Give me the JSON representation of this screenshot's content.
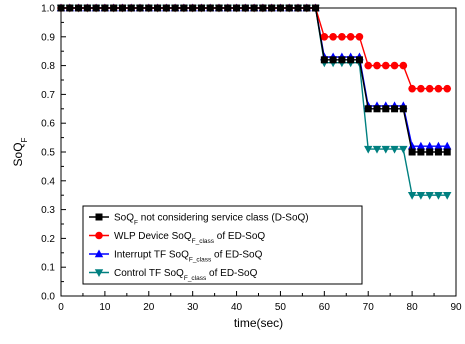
{
  "chart_data": {
    "type": "line",
    "xlabel": "time(sec)",
    "ylabel": {
      "main": "SoQ",
      "sub": "F"
    },
    "xlim": [
      0,
      90
    ],
    "ylim": [
      0.0,
      1.0
    ],
    "xticks": [
      0,
      10,
      20,
      30,
      40,
      50,
      60,
      70,
      80,
      90
    ],
    "yticks": [
      0.0,
      0.1,
      0.2,
      0.3,
      0.4,
      0.5,
      0.6,
      0.7,
      0.8,
      0.9,
      1.0
    ],
    "xtick_labels": [
      "0",
      "10",
      "20",
      "30",
      "40",
      "50",
      "60",
      "70",
      "80",
      "90"
    ],
    "ytick_labels": [
      "0.0",
      "0.1",
      "0.2",
      "0.3",
      "0.4",
      "0.5",
      "0.6",
      "0.7",
      "0.8",
      "0.9",
      "1.0"
    ],
    "grid": false,
    "legend_position": "bottom-left",
    "x": [
      0,
      2,
      4,
      6,
      8,
      10,
      12,
      14,
      16,
      18,
      20,
      22,
      24,
      26,
      28,
      30,
      32,
      34,
      36,
      38,
      40,
      42,
      44,
      46,
      48,
      50,
      52,
      54,
      56,
      58,
      60,
      62,
      64,
      66,
      68,
      70,
      72,
      74,
      76,
      78,
      80,
      82,
      84,
      86,
      88
    ],
    "series": [
      {
        "name": "SoQ not considering service class (D-SoQ)",
        "legend": {
          "pre": "SoQ",
          "sub": "F",
          "post": " not considering service class (D-SoQ)"
        },
        "color": "#000000",
        "marker": "square",
        "values": [
          1,
          1,
          1,
          1,
          1,
          1,
          1,
          1,
          1,
          1,
          1,
          1,
          1,
          1,
          1,
          1,
          1,
          1,
          1,
          1,
          1,
          1,
          1,
          1,
          1,
          1,
          1,
          1,
          1,
          1,
          0.82,
          0.82,
          0.82,
          0.82,
          0.82,
          0.65,
          0.65,
          0.65,
          0.65,
          0.65,
          0.5,
          0.5,
          0.5,
          0.5,
          0.5
        ]
      },
      {
        "name": "WLP Device SoQ of ED-SoQ",
        "legend": {
          "pre": "WLP Device SoQ",
          "sub": "F_class",
          "post": " of ED-SoQ"
        },
        "color": "#ff0000",
        "marker": "circle",
        "values": [
          1,
          1,
          1,
          1,
          1,
          1,
          1,
          1,
          1,
          1,
          1,
          1,
          1,
          1,
          1,
          1,
          1,
          1,
          1,
          1,
          1,
          1,
          1,
          1,
          1,
          1,
          1,
          1,
          1,
          1,
          0.9,
          0.9,
          0.9,
          0.9,
          0.9,
          0.8,
          0.8,
          0.8,
          0.8,
          0.8,
          0.72,
          0.72,
          0.72,
          0.72,
          0.72
        ]
      },
      {
        "name": "Interrupt TF SoQ of ED-SoQ",
        "legend": {
          "pre": "Interrupt TF SoQ",
          "sub": "F_class",
          "post": " of ED-SoQ"
        },
        "color": "#0000ff",
        "marker": "triangle-up",
        "values": [
          1,
          1,
          1,
          1,
          1,
          1,
          1,
          1,
          1,
          1,
          1,
          1,
          1,
          1,
          1,
          1,
          1,
          1,
          1,
          1,
          1,
          1,
          1,
          1,
          1,
          1,
          1,
          1,
          1,
          1,
          0.83,
          0.83,
          0.83,
          0.83,
          0.83,
          0.66,
          0.66,
          0.66,
          0.66,
          0.66,
          0.52,
          0.52,
          0.52,
          0.52,
          0.52
        ]
      },
      {
        "name": "Control TF SoQ of ED-SoQ",
        "legend": {
          "pre": "Control TF SoQ",
          "sub": "F_class",
          "post": " of ED-SoQ"
        },
        "color": "#008080",
        "marker": "triangle-down",
        "values": [
          1,
          1,
          1,
          1,
          1,
          1,
          1,
          1,
          1,
          1,
          1,
          1,
          1,
          1,
          1,
          1,
          1,
          1,
          1,
          1,
          1,
          1,
          1,
          1,
          1,
          1,
          1,
          1,
          1,
          1,
          0.81,
          0.81,
          0.81,
          0.81,
          0.81,
          0.51,
          0.51,
          0.51,
          0.51,
          0.51,
          0.35,
          0.35,
          0.35,
          0.35,
          0.35
        ]
      }
    ]
  }
}
